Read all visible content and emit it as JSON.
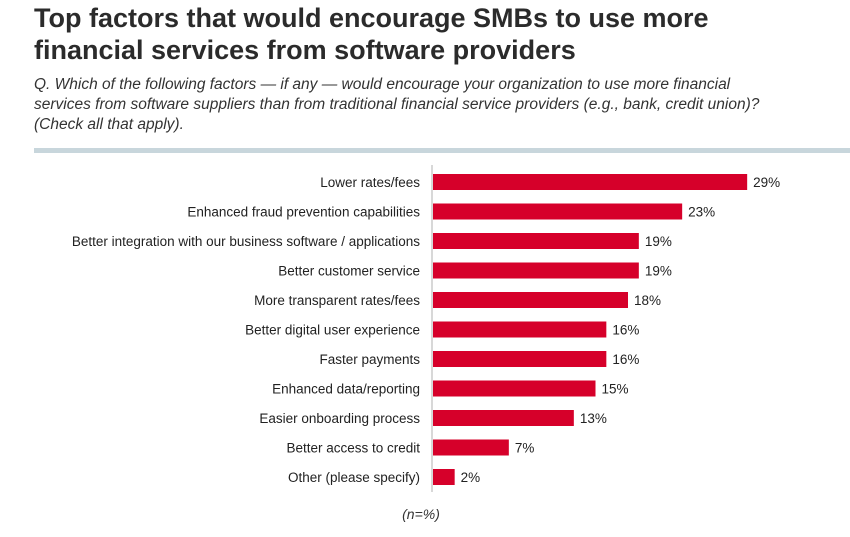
{
  "header": {
    "title_line1": "Top factors that would encourage SMBs to use more",
    "title_line2": "financial services from software providers",
    "question": "Q. Which of the following factors — if any — would encourage your organization to use more financial services from software suppliers than from traditional financial service providers (e.g., bank, credit union)? (Check all that apply)."
  },
  "footnote": "(n=%)",
  "colors": {
    "bar": "#d6002a",
    "axis": "#b0b0b0",
    "divider": "#c8d6dc"
  },
  "chart_data": {
    "type": "bar",
    "orientation": "horizontal",
    "categories": [
      "Lower rates/fees",
      "Enhanced fraud prevention capabilities",
      "Better integration with our business software / applications",
      "Better customer service",
      "More transparent rates/fees",
      "Better digital user experience",
      "Faster payments",
      "Enhanced data/reporting",
      "Easier onboarding process",
      "Better access to credit",
      "Other (please specify)"
    ],
    "values": [
      29,
      23,
      19,
      19,
      18,
      16,
      16,
      15,
      13,
      7,
      2
    ],
    "value_labels": [
      "29%",
      "23%",
      "19%",
      "19%",
      "18%",
      "16%",
      "16%",
      "15%",
      "13%",
      "7%",
      "2%"
    ],
    "xlim": [
      0,
      30
    ],
    "unit": "%"
  }
}
